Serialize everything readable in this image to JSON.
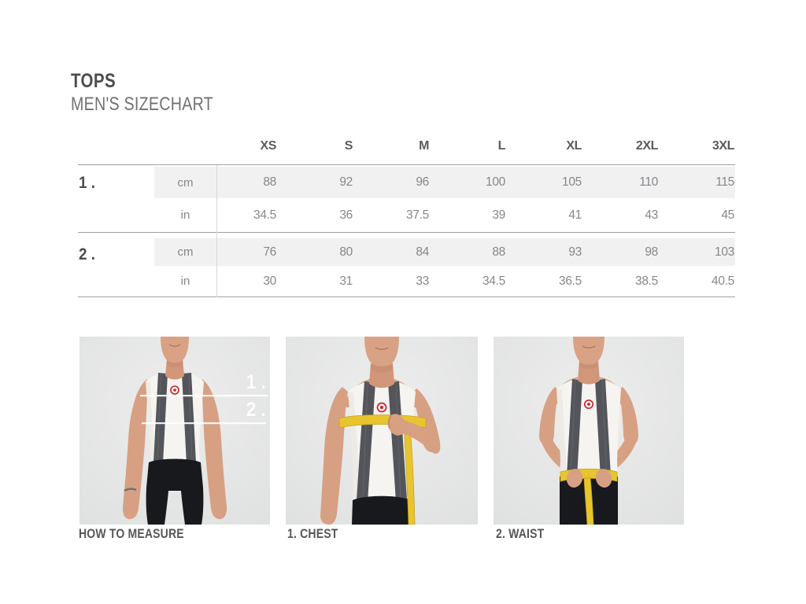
{
  "header": {
    "title": "TOPS",
    "subtitle": "MEN'S SIZECHART"
  },
  "table": {
    "sizes": [
      "XS",
      "S",
      "M",
      "L",
      "XL",
      "2XL",
      "3XL"
    ],
    "groups": [
      {
        "label": "1 .",
        "rows": [
          {
            "unit": "cm",
            "values": [
              "88",
              "92",
              "96",
              "100",
              "105",
              "110",
              "115"
            ]
          },
          {
            "unit": "in",
            "values": [
              "34.5",
              "36",
              "37.5",
              "39",
              "41",
              "43",
              "45"
            ]
          }
        ]
      },
      {
        "label": "2 .",
        "rows": [
          {
            "unit": "cm",
            "values": [
              "76",
              "80",
              "84",
              "88",
              "93",
              "98",
              "103"
            ]
          },
          {
            "unit": "in",
            "values": [
              "30",
              "31",
              "33",
              "34.5",
              "36.5",
              "38.5",
              "40.5"
            ]
          }
        ]
      }
    ]
  },
  "figures": [
    {
      "caption": "HOW TO MEASURE",
      "overlays": {
        "label1": "1 .",
        "label2": "2 ."
      }
    },
    {
      "caption": "1. CHEST"
    },
    {
      "caption": "2. WAIST"
    }
  ],
  "colors": {
    "logo_red": "#cb2128",
    "tape_yellow": "#e8c52f",
    "row_highlight": "#f1f1f2",
    "text_dark": "#4c4d4f",
    "text_gray": "#86878b",
    "photo_background": "#e9eaea"
  }
}
